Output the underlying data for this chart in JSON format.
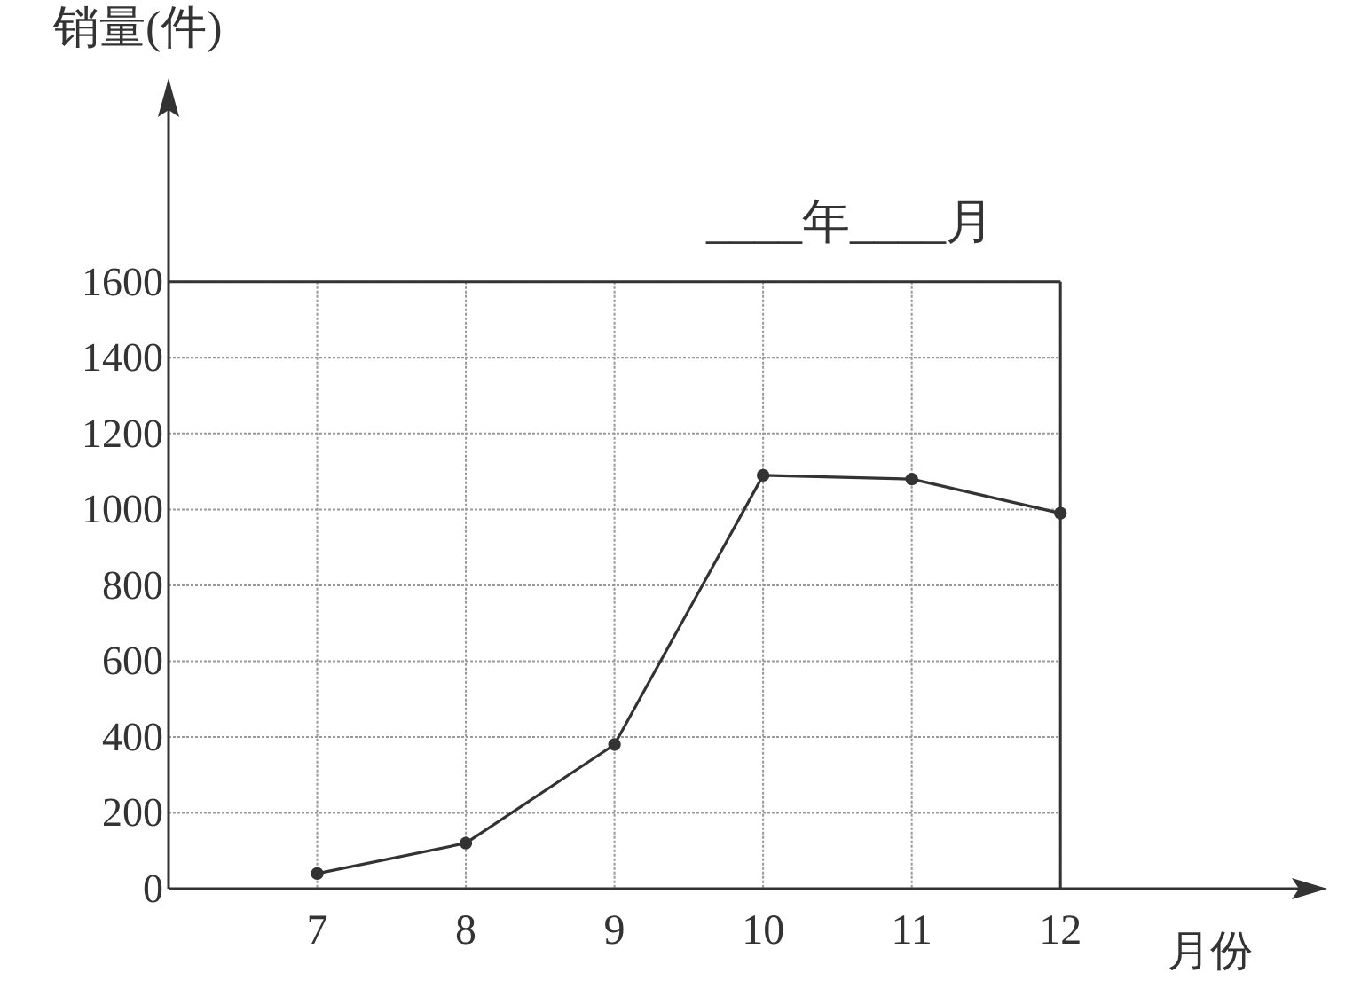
{
  "chart_data": {
    "type": "line",
    "ylabel": "销量(件)",
    "xlabel": "月份",
    "annotations": [
      "____年____月"
    ],
    "x": [
      7,
      8,
      9,
      10,
      11,
      12
    ],
    "series": [
      {
        "color": "#333333",
        "values": [
          40,
          120,
          380,
          1090,
          1080,
          990
        ]
      }
    ],
    "xlim": [
      6,
      13.7
    ],
    "xticks": [
      7,
      8,
      9,
      10,
      11,
      12
    ],
    "ylim": [
      0,
      2100
    ],
    "yticks": [
      0,
      200,
      400,
      600,
      800,
      1000,
      1200,
      1400,
      1600
    ],
    "grid": true,
    "marker": "circle",
    "line_style": "solid"
  }
}
